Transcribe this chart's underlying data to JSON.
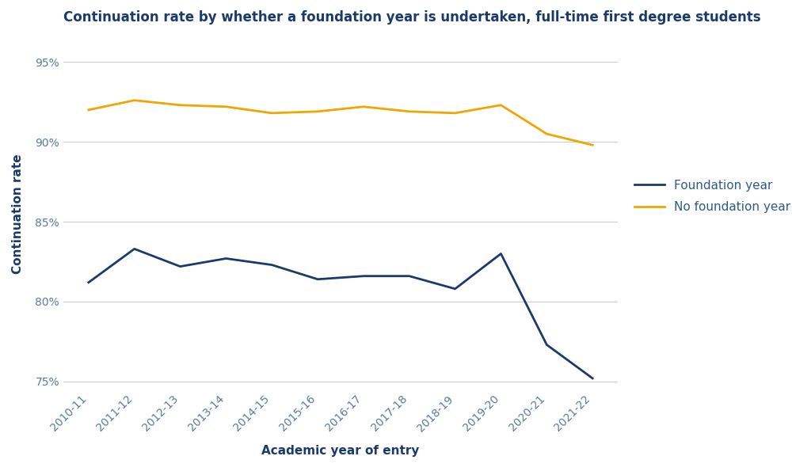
{
  "title": "Continuation rate by whether a foundation year is undertaken, full-time first degree students",
  "xlabel": "Academic year of entry",
  "ylabel": "Continuation rate",
  "categories": [
    "2010-11",
    "2011-12",
    "2012-13",
    "2013-14",
    "2014-15",
    "2015-16",
    "2016-17",
    "2017-18",
    "2018-19",
    "2019-20",
    "2020-21",
    "2021-22"
  ],
  "foundation_year": [
    81.2,
    83.3,
    82.2,
    82.7,
    82.3,
    81.4,
    81.6,
    81.6,
    80.8,
    83.0,
    77.3,
    75.2
  ],
  "no_foundation_year": [
    92.0,
    92.6,
    92.3,
    92.2,
    91.8,
    91.9,
    92.2,
    91.9,
    91.8,
    92.3,
    90.5,
    89.8
  ],
  "foundation_color": "#1a3a6b",
  "no_foundation_color": "#f0a500",
  "background_color": "#ffffff",
  "grid_color": "#cccccc",
  "ylim": [
    74.5,
    96.5
  ],
  "yticks": [
    75,
    80,
    85,
    90,
    95
  ],
  "title_fontsize": 12,
  "axis_label_fontsize": 11,
  "tick_fontsize": 10,
  "legend_labels": [
    "Foundation year",
    "No foundation year"
  ],
  "legend_text_color": "#2d5a8e"
}
